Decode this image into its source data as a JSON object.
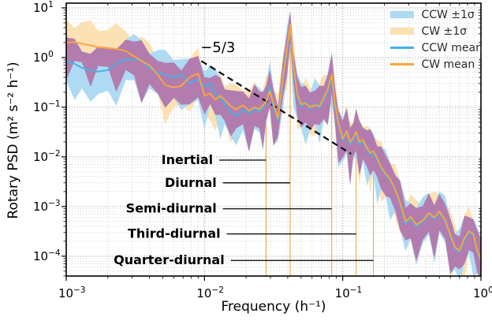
{
  "figure": {
    "xlabel": "Frequency (h⁻¹)",
    "ylabel": "Rotary PSD (m² s⁻² h⁻¹)"
  },
  "legend": {
    "entries": [
      {
        "label": "CCW ±1σ",
        "type": "band",
        "color": "#aedaf3"
      },
      {
        "label": "CW ±1σ",
        "type": "band",
        "color": "#fbe1b3"
      },
      {
        "label": "CCW mean",
        "type": "line",
        "color": "#45b1e8"
      },
      {
        "label": "CW mean",
        "type": "line",
        "color": "#f8a73e"
      }
    ]
  },
  "colors": {
    "grid_major": "#9b9b9b",
    "grid_minor": "#c9c9c9",
    "spine": "#000000",
    "reference_line": "#eda845",
    "annotation": "#000000",
    "slope_line": "#111111",
    "band_overlap": "#b37cae"
  },
  "chart_data": {
    "type": "line",
    "title": "",
    "xlabel": "Frequency (h⁻¹)",
    "ylabel": "Rotary PSD (m² s⁻² h⁻¹)",
    "x_axis": {
      "scale": "log",
      "range": [
        0.001,
        1.0
      ],
      "tick_exponents": [
        -3,
        -2,
        -1,
        0
      ]
    },
    "y_axis": {
      "scale": "log",
      "range_exponents": [
        -4.4,
        1.095
      ],
      "tick_exponents": [
        1,
        0,
        -1,
        -2,
        -3,
        -4
      ]
    },
    "grid": "both-dotted",
    "legend_position": "upper right",
    "frequencies": [
      0.001,
      0.00115,
      0.0013,
      0.0015,
      0.0017,
      0.002,
      0.0023,
      0.0027,
      0.0031,
      0.0035,
      0.004,
      0.0046,
      0.0052,
      0.006,
      0.0068,
      0.0078,
      0.009,
      0.01,
      0.011,
      0.012,
      0.013,
      0.014,
      0.0155,
      0.017,
      0.019,
      0.021,
      0.023,
      0.025,
      0.0265,
      0.0279,
      0.0297,
      0.0315,
      0.034,
      0.037,
      0.0395,
      0.0417,
      0.044,
      0.047,
      0.05,
      0.054,
      0.058,
      0.063,
      0.068,
      0.073,
      0.078,
      0.0833,
      0.088,
      0.093,
      0.1,
      0.107,
      0.113,
      0.119,
      0.125,
      0.132,
      0.14,
      0.15,
      0.158,
      0.1667,
      0.178,
      0.19,
      0.205,
      0.22,
      0.24,
      0.26,
      0.285,
      0.31,
      0.34,
      0.38,
      0.42,
      0.46,
      0.5,
      0.55,
      0.6,
      0.65,
      0.7,
      0.76,
      0.82,
      0.88,
      0.94,
      1.0
    ],
    "series": [
      {
        "name": "CCW mean",
        "color": "#45b1e8",
        "values": [
          0.86,
          0.75,
          0.62,
          0.55,
          0.52,
          0.56,
          0.75,
          0.92,
          0.9,
          0.88,
          0.62,
          0.5,
          0.44,
          0.4,
          0.45,
          0.3,
          0.36,
          0.26,
          0.3,
          0.18,
          0.15,
          0.12,
          0.08,
          0.065,
          0.09,
          0.075,
          0.095,
          0.08,
          0.1,
          0.12,
          0.26,
          0.1,
          0.055,
          0.35,
          1.3,
          4.2,
          0.65,
          0.16,
          0.1,
          0.13,
          0.09,
          0.12,
          0.095,
          0.14,
          0.2,
          0.38,
          0.1,
          0.045,
          0.021,
          0.03,
          0.018,
          0.022,
          0.029,
          0.018,
          0.02,
          0.014,
          0.011,
          0.0115,
          0.0085,
          0.0058,
          0.0042,
          0.0034,
          0.0021,
          0.0011,
          0.00045,
          0.00058,
          0.0004,
          0.00048,
          0.0007,
          0.00056,
          0.00076,
          0.0005,
          0.00025,
          0.00014,
          0.00012,
          0.00021,
          0.0003,
          0.00026,
          0.00012,
          8e-05
        ]
      },
      {
        "name": "CW mean",
        "color": "#f8a73e",
        "values": [
          2.0,
          2.05,
          1.9,
          1.75,
          1.62,
          1.55,
          1.5,
          1.35,
          1.05,
          0.85,
          0.7,
          0.45,
          0.28,
          0.25,
          0.27,
          0.4,
          0.48,
          0.17,
          0.19,
          0.14,
          0.17,
          0.14,
          0.105,
          0.09,
          0.11,
          0.085,
          0.1,
          0.09,
          0.11,
          0.13,
          0.21,
          0.12,
          0.06,
          0.4,
          1.5,
          4.6,
          0.72,
          0.18,
          0.115,
          0.12,
          0.1,
          0.11,
          0.105,
          0.155,
          0.23,
          0.46,
          0.115,
          0.05,
          0.023,
          0.033,
          0.02,
          0.024,
          0.032,
          0.02,
          0.022,
          0.015,
          0.012,
          0.013,
          0.0092,
          0.0062,
          0.0045,
          0.0036,
          0.0022,
          0.0012,
          0.0005,
          0.00062,
          0.00043,
          0.00052,
          0.00074,
          0.0006,
          0.0008,
          0.00053,
          0.00027,
          0.00015,
          0.00013,
          0.00023,
          0.00032,
          0.00028,
          0.00013,
          8.5e-05
        ]
      }
    ],
    "bands": {
      "description": "±1σ envelopes around each mean, generated from multiplicative spread factors",
      "max_value": 8.6,
      "ccw": {
        "fill": "#aedaf3",
        "hi_base": 2.6,
        "hi_amp": 0.7,
        "hi_freq": 1.7,
        "hi_phase": 0.5,
        "lo_base": 2.6,
        "lo_amp": 1.0,
        "lo_freq": 2.3,
        "lo_phase": 0.0,
        "lo_deep": 5.0
      },
      "cw": {
        "fill": "#fbe1b3",
        "hi_base": 2.6,
        "hi_amp": 0.7,
        "hi_freq": 1.9,
        "hi_phase": 2.6,
        "lo_base": 2.4,
        "lo_amp": 1.0,
        "lo_freq": 2.0,
        "lo_phase": 2.2,
        "lo_deep": 5.0
      },
      "overlap_fill": "#b37cae"
    },
    "slope_line": {
      "label": "−5/3",
      "x1": 0.0095,
      "y1": 0.85,
      "x2": 0.115,
      "y2": 0.0115,
      "label_x": 0.0125,
      "label_y": 1.6
    },
    "reference_lines": {
      "color": "#eda845",
      "frequencies": [
        0.0279,
        0.04167,
        0.0833,
        0.125,
        0.1667
      ]
    },
    "annotations": [
      {
        "label": "Inertial",
        "level": 0.0086,
        "text_f": 0.0128,
        "target_f": 0.0279
      },
      {
        "label": "Diurnal",
        "level": 0.003,
        "text_f": 0.0136,
        "target_f": 0.04167
      },
      {
        "label": "Semi-diurnal",
        "level": 0.0009,
        "text_f": 0.0136,
        "target_f": 0.0833
      },
      {
        "label": "Third-diurnal",
        "level": 0.00028,
        "text_f": 0.0145,
        "target_f": 0.125
      },
      {
        "label": "Quarter-diurnal",
        "level": 8.2e-05,
        "text_f": 0.0155,
        "target_f": 0.1667
      }
    ]
  }
}
